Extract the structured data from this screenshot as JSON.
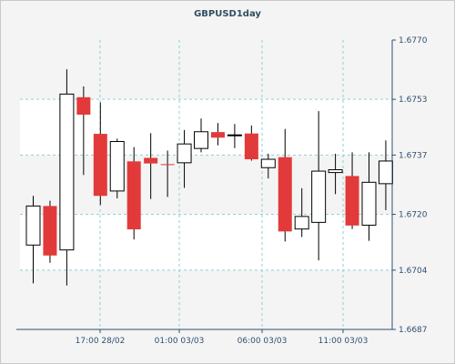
{
  "chart_data": {
    "type": "candlestick",
    "title": "GBPUSD1day",
    "x_tick_labels": [
      "17:00 28/02",
      "01:00 03/03",
      "06:00 03/03",
      "11:00 03/03"
    ],
    "y_tick_labels": [
      "1.6770",
      "1.6753",
      "1.6737",
      "1.6720",
      "1.6704",
      "1.6687"
    ],
    "ylim": [
      1.6687,
      1.677
    ],
    "grid": true,
    "colors": {
      "up": "#ffffff",
      "down": "#e23a3a",
      "outline": "#000000",
      "grid": "#8fd0d6",
      "axis": "#2f5070",
      "plot_bg": "#ffffff",
      "band": "#f4f4f4"
    },
    "candles": [
      {
        "o": 1.67112,
        "h": 1.67253,
        "l": 1.67002,
        "c": 1.67224
      },
      {
        "o": 1.67224,
        "h": 1.67239,
        "l": 1.67061,
        "c": 1.67082
      },
      {
        "o": 1.67098,
        "h": 1.67616,
        "l": 1.66996,
        "c": 1.67545
      },
      {
        "o": 1.67536,
        "h": 1.67567,
        "l": 1.67313,
        "c": 1.67486
      },
      {
        "o": 1.67431,
        "h": 1.67521,
        "l": 1.67227,
        "c": 1.67253
      },
      {
        "o": 1.67267,
        "h": 1.67417,
        "l": 1.67246,
        "c": 1.67409
      },
      {
        "o": 1.67352,
        "h": 1.67393,
        "l": 1.67128,
        "c": 1.67157
      },
      {
        "o": 1.67362,
        "h": 1.67433,
        "l": 1.67244,
        "c": 1.67346
      },
      {
        "o": 1.67344,
        "h": 1.67383,
        "l": 1.6725,
        "c": 1.67343
      },
      {
        "o": 1.67348,
        "h": 1.67442,
        "l": 1.67276,
        "c": 1.67402
      },
      {
        "o": 1.67389,
        "h": 1.67475,
        "l": 1.67378,
        "c": 1.67437
      },
      {
        "o": 1.67436,
        "h": 1.67462,
        "l": 1.67398,
        "c": 1.6742
      },
      {
        "o": 1.67428,
        "h": 1.67459,
        "l": 1.6739,
        "c": 1.67428
      },
      {
        "o": 1.67432,
        "h": 1.67455,
        "l": 1.67354,
        "c": 1.67358
      },
      {
        "o": 1.67334,
        "h": 1.67374,
        "l": 1.67303,
        "c": 1.67358
      },
      {
        "o": 1.67364,
        "h": 1.67445,
        "l": 1.67122,
        "c": 1.67151
      },
      {
        "o": 1.67158,
        "h": 1.67275,
        "l": 1.67135,
        "c": 1.67194
      },
      {
        "o": 1.67177,
        "h": 1.67496,
        "l": 1.67068,
        "c": 1.67324
      },
      {
        "o": 1.6732,
        "h": 1.67374,
        "l": 1.67258,
        "c": 1.67328
      },
      {
        "o": 1.6731,
        "h": 1.67378,
        "l": 1.67158,
        "c": 1.67168
      },
      {
        "o": 1.67169,
        "h": 1.67378,
        "l": 1.67124,
        "c": 1.67292
      },
      {
        "o": 1.67288,
        "h": 1.67412,
        "l": 1.67212,
        "c": 1.67353
      }
    ]
  }
}
